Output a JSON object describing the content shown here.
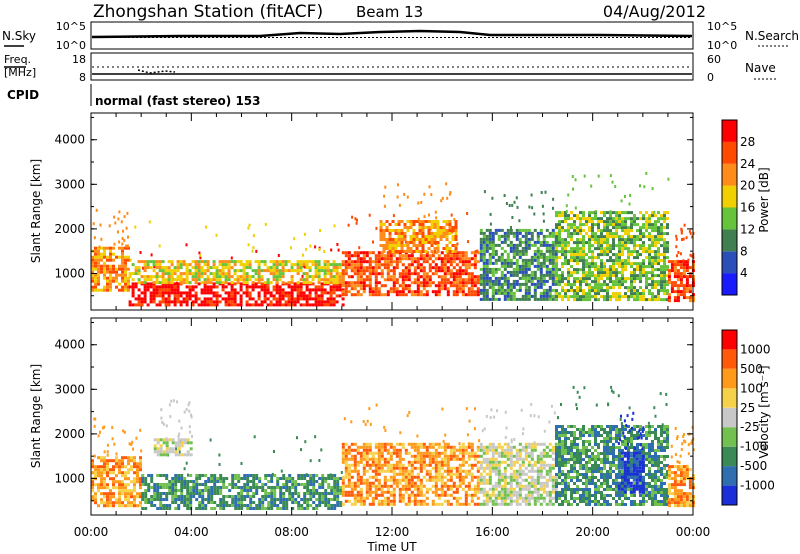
{
  "header": {
    "station": "Zhongshan Station (fitACF)",
    "beam": "Beam 13",
    "date": "04/Aug/2012"
  },
  "noise_panel": {
    "left_label": "N.Sky",
    "left_ticks": [
      "10^5",
      "10^0"
    ],
    "right_ticks": [
      "10^5",
      "10^0"
    ],
    "right_label": "N.Search"
  },
  "freq_panel": {
    "left_label_1": "Freq.",
    "left_label_2": "[MHz]",
    "left_ticks": [
      "18",
      "8"
    ],
    "right_ticks": [
      "60",
      "0"
    ],
    "right_label": "Nave"
  },
  "cpid": {
    "label": "CPID",
    "value": "normal (fast stereo) 153"
  },
  "chart_data": [
    {
      "type": "heatmap",
      "parameter": "Power",
      "ylabel": "Slant Range [km]",
      "y_ticks": [
        "1000",
        "2000",
        "3000",
        "4000"
      ],
      "ylim": [
        180,
        4600
      ],
      "colorbar": {
        "label": "Power [dB]",
        "ticks": [
          "4",
          "8",
          "12",
          "16",
          "20",
          "24",
          "28"
        ],
        "colors": [
          "#1a1aff",
          "#2a4fb8",
          "#3f7f50",
          "#66c43a",
          "#f0d000",
          "#ff8c1a",
          "#ff4a00",
          "#ff0000"
        ]
      },
      "echo_regions": [
        {
          "t0": 0.0,
          "t1": 1.5,
          "r0": 600,
          "r1": 1600,
          "level": 5
        },
        {
          "t0": 1.5,
          "t1": 10.0,
          "r0": 300,
          "r1": 800,
          "level": 7
        },
        {
          "t0": 1.5,
          "t1": 10.0,
          "r0": 800,
          "r1": 1300,
          "level": 4
        },
        {
          "t0": 10.0,
          "t1": 15.5,
          "r0": 500,
          "r1": 1500,
          "level": 6
        },
        {
          "t0": 11.5,
          "t1": 14.5,
          "r0": 1500,
          "r1": 2200,
          "level": 5
        },
        {
          "t0": 15.5,
          "t1": 18.5,
          "r0": 400,
          "r1": 2000,
          "level": 2
        },
        {
          "t0": 18.5,
          "t1": 23.0,
          "r0": 400,
          "r1": 2400,
          "level": 3
        },
        {
          "t0": 23.0,
          "t1": 24.0,
          "r0": 400,
          "r1": 1300,
          "level": 6
        }
      ]
    },
    {
      "type": "heatmap",
      "parameter": "Velocity",
      "xlabel": "Time UT",
      "x_ticks": [
        "00:00",
        "04:00",
        "08:00",
        "12:00",
        "16:00",
        "20:00",
        "00:00"
      ],
      "xlim": [
        0,
        24
      ],
      "ylabel": "Slant Range [km]",
      "y_ticks": [
        "1000",
        "2000",
        "3000",
        "4000"
      ],
      "ylim": [
        180,
        4600
      ],
      "colorbar": {
        "label": "Velocity [m s⁻¹]",
        "ticks": [
          "1000",
          "500",
          "100",
          "25",
          "-25",
          "-100",
          "-500",
          "-1000"
        ],
        "colors": [
          "#1a2fd8",
          "#2f6fb0",
          "#3a8a55",
          "#72c050",
          "#c8c8c8",
          "#f5d24a",
          "#ff9a1a",
          "#ff5a0a",
          "#ff0000"
        ]
      },
      "echo_regions": [
        {
          "t0": 0.0,
          "t1": 2.0,
          "r0": 400,
          "r1": 1500,
          "level": 6
        },
        {
          "t0": 2.0,
          "t1": 10.0,
          "r0": 300,
          "r1": 1100,
          "level": 2
        },
        {
          "t0": 2.5,
          "t1": 4.0,
          "r0": 1500,
          "r1": 1900,
          "level": 4
        },
        {
          "t0": 10.0,
          "t1": 15.5,
          "r0": 400,
          "r1": 1800,
          "level": 6
        },
        {
          "t0": 15.5,
          "t1": 18.5,
          "r0": 400,
          "r1": 1800,
          "level": 4
        },
        {
          "t0": 18.5,
          "t1": 23.0,
          "r0": 400,
          "r1": 2200,
          "level": 2
        },
        {
          "t0": 21.0,
          "t1": 22.0,
          "r0": 700,
          "r1": 1600,
          "level": 0
        },
        {
          "t0": 23.0,
          "t1": 24.0,
          "r0": 400,
          "r1": 1300,
          "level": 6
        }
      ]
    }
  ]
}
